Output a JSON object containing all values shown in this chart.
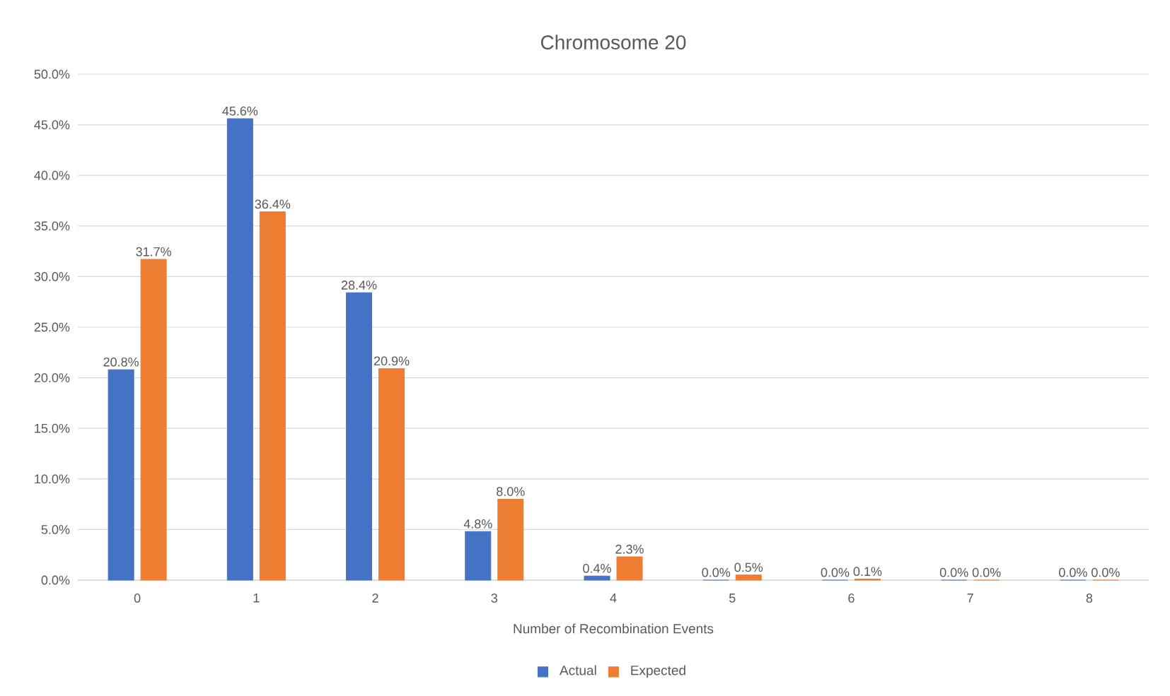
{
  "chart_data": {
    "type": "bar",
    "title": "Chromosome 20",
    "xlabel": "Number of Recombination Events",
    "categories": [
      "0",
      "1",
      "2",
      "3",
      "4",
      "5",
      "6",
      "7",
      "8"
    ],
    "series": [
      {
        "name": "Actual",
        "color": "#4472c4",
        "values": [
          20.8,
          45.6,
          28.4,
          4.8,
          0.4,
          0.0,
          0.0,
          0.0,
          0.0
        ],
        "value_labels": [
          "20.8%",
          "45.6%",
          "28.4%",
          "4.8%",
          "0.4%",
          "0.0%",
          "0.0%",
          "0.0%",
          "0.0%"
        ]
      },
      {
        "name": "Expected",
        "color": "#ed7d31",
        "values": [
          31.7,
          36.4,
          20.9,
          8.0,
          2.3,
          0.5,
          0.1,
          0.0,
          0.0
        ],
        "value_labels": [
          "31.7%",
          "36.4%",
          "20.9%",
          "8.0%",
          "2.3%",
          "0.5%",
          "0.1%",
          "0.0%",
          "0.0%"
        ]
      }
    ],
    "ylim": [
      0,
      50
    ],
    "yticks": [
      {
        "value": 0,
        "label": "0.0%"
      },
      {
        "value": 5,
        "label": "5.0%"
      },
      {
        "value": 10,
        "label": "10.0%"
      },
      {
        "value": 15,
        "label": "15.0%"
      },
      {
        "value": 20,
        "label": "20.0%"
      },
      {
        "value": 25,
        "label": "25.0%"
      },
      {
        "value": 30,
        "label": "30.0%"
      },
      {
        "value": 35,
        "label": "35.0%"
      },
      {
        "value": 40,
        "label": "40.0%"
      },
      {
        "value": 45,
        "label": "45.0%"
      },
      {
        "value": 50,
        "label": "50.0%"
      }
    ],
    "grid": "y",
    "legend": "bottom"
  }
}
